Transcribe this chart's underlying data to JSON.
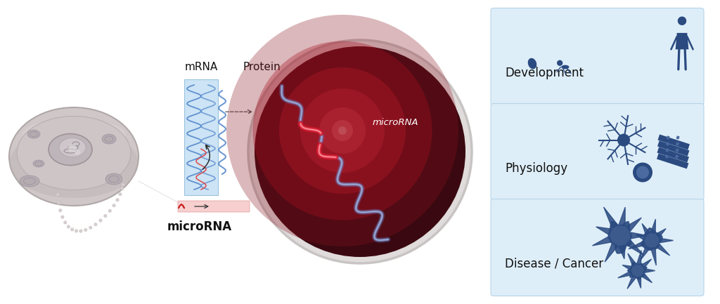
{
  "bg_color": "#ffffff",
  "panel_bg": "#ddeef8",
  "panel_labels": [
    "Development",
    "Physiology",
    "Disease / Cancer"
  ],
  "panel_label_color": "#111111",
  "mrna_label": "mRNA",
  "protein_label": "Protein",
  "mirna_label": "microRNA",
  "mirna_italic_label": "microRNA",
  "sil_color": "#2a4a80",
  "mrna_box_color": "#cce4f5",
  "mrna_dna_color1": "#4a7bb7",
  "mirna_strip_color": "#f5b5b5",
  "circle_dark": "#3a0810",
  "circle_rim": "#d8d4d4",
  "arrow_color": "#222222",
  "title_fontsize": 12,
  "label_fontsize": 11,
  "mirna_circle_label_color": "#ffffff"
}
